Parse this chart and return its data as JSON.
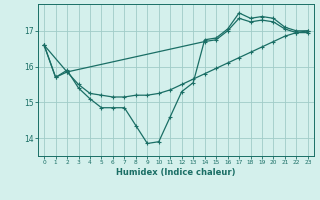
{
  "xlabel": "Humidex (Indice chaleur)",
  "bg_color": "#d4f0ec",
  "grid_color": "#a0ccc8",
  "line_color": "#1a6e65",
  "xlim": [
    -0.5,
    23.5
  ],
  "ylim": [
    13.5,
    17.75
  ],
  "yticks": [
    14,
    15,
    16,
    17
  ],
  "xticks": [
    0,
    1,
    2,
    3,
    4,
    5,
    6,
    7,
    8,
    9,
    10,
    11,
    12,
    13,
    14,
    15,
    16,
    17,
    18,
    19,
    20,
    21,
    22,
    23
  ],
  "line1_x": [
    0,
    1,
    2,
    3,
    4,
    5,
    6,
    7,
    8,
    9,
    10,
    11,
    12,
    13,
    14,
    15,
    16,
    17,
    18,
    19,
    20,
    21,
    22,
    23
  ],
  "line1_y": [
    16.6,
    15.7,
    15.9,
    15.4,
    15.1,
    14.85,
    14.85,
    14.85,
    14.35,
    13.85,
    13.9,
    14.6,
    15.3,
    15.55,
    16.75,
    16.8,
    17.05,
    17.5,
    17.35,
    17.4,
    17.35,
    17.1,
    17.0,
    17.0
  ],
  "line2_x": [
    0,
    2,
    14,
    15,
    16,
    17,
    18,
    19,
    20,
    21,
    22,
    23
  ],
  "line2_y": [
    16.6,
    15.85,
    16.7,
    16.75,
    17.0,
    17.35,
    17.25,
    17.3,
    17.25,
    17.05,
    16.95,
    16.95
  ],
  "line3_x": [
    0,
    1,
    2,
    3,
    4,
    5,
    6,
    7,
    8,
    9,
    10,
    11,
    12,
    13,
    14,
    15,
    16,
    17,
    18,
    19,
    20,
    21,
    22,
    23
  ],
  "line3_y": [
    16.6,
    15.7,
    15.85,
    15.5,
    15.25,
    15.2,
    15.15,
    15.15,
    15.2,
    15.2,
    15.25,
    15.35,
    15.5,
    15.65,
    15.8,
    15.95,
    16.1,
    16.25,
    16.4,
    16.55,
    16.7,
    16.85,
    16.95,
    17.0
  ]
}
